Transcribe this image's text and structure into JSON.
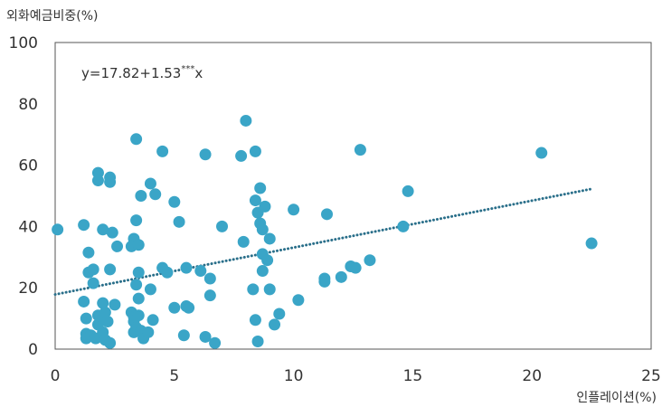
{
  "chart_data": {
    "type": "scatter",
    "ylabel": "외화예금비중(%)",
    "xlabel": "인플레이션(%)",
    "xlim": [
      0,
      25
    ],
    "ylim": [
      0,
      100
    ],
    "x_ticks": [
      "0",
      "5",
      "10",
      "15",
      "20",
      "25"
    ],
    "y_ticks": [
      "0",
      "20",
      "40",
      "60",
      "80",
      "100"
    ],
    "annotation": {
      "text": "y=17.82+1.53",
      "superscript": "***",
      "suffix": "x"
    },
    "trendline": {
      "intercept": 17.82,
      "slope": 1.53,
      "x_range": [
        0,
        22.5
      ],
      "style": "dotted"
    },
    "colors": {
      "points": "#3aa5c7",
      "trendline": "#2a6f8a",
      "frame": "#555555"
    },
    "points": [
      [
        0.1,
        39
      ],
      [
        1.2,
        40.5
      ],
      [
        1.4,
        31.5
      ],
      [
        1.4,
        25
      ],
      [
        1.6,
        26
      ],
      [
        1.6,
        21.5
      ],
      [
        1.2,
        15.5
      ],
      [
        1.3,
        10
      ],
      [
        1.3,
        5
      ],
      [
        1.3,
        3.5
      ],
      [
        1.5,
        4.5
      ],
      [
        1.7,
        3.5
      ],
      [
        1.8,
        11
      ],
      [
        1.8,
        8
      ],
      [
        2.0,
        10
      ],
      [
        2.0,
        5.5
      ],
      [
        2.1,
        3
      ],
      [
        2.3,
        2
      ],
      [
        2.1,
        12
      ],
      [
        2.2,
        9
      ],
      [
        2.0,
        15
      ],
      [
        2.5,
        14.5
      ],
      [
        1.8,
        57.5
      ],
      [
        1.8,
        55
      ],
      [
        2.3,
        56
      ],
      [
        2.3,
        54.5
      ],
      [
        2.0,
        39
      ],
      [
        2.4,
        38
      ],
      [
        2.6,
        33.5
      ],
      [
        2.3,
        26
      ],
      [
        3.4,
        68.5
      ],
      [
        3.3,
        36
      ],
      [
        3.2,
        33.5
      ],
      [
        3.5,
        34
      ],
      [
        3.4,
        42
      ],
      [
        3.6,
        50
      ],
      [
        3.5,
        25
      ],
      [
        3.4,
        21
      ],
      [
        3.5,
        16.5
      ],
      [
        3.2,
        12
      ],
      [
        3.3,
        10.5
      ],
      [
        3.5,
        11
      ],
      [
        3.3,
        9
      ],
      [
        3.4,
        7
      ],
      [
        3.3,
        5.5
      ],
      [
        3.6,
        6
      ],
      [
        3.7,
        3.5
      ],
      [
        3.9,
        5.5
      ],
      [
        4.0,
        54
      ],
      [
        4.2,
        50.5
      ],
      [
        4.0,
        19.5
      ],
      [
        4.1,
        9.5
      ],
      [
        4.5,
        64.5
      ],
      [
        4.5,
        26.5
      ],
      [
        4.7,
        25
      ],
      [
        5.0,
        48
      ],
      [
        5.2,
        41.5
      ],
      [
        5.0,
        13.5
      ],
      [
        5.4,
        4.5
      ],
      [
        5.5,
        14
      ],
      [
        5.6,
        13.5
      ],
      [
        5.5,
        26.5
      ],
      [
        6.1,
        25.5
      ],
      [
        6.3,
        4
      ],
      [
        6.5,
        23
      ],
      [
        6.5,
        17.5
      ],
      [
        6.7,
        2
      ],
      [
        6.3,
        63.5
      ],
      [
        7.0,
        40
      ],
      [
        8.0,
        74.5
      ],
      [
        7.8,
        63
      ],
      [
        7.9,
        35
      ],
      [
        8.4,
        64.5
      ],
      [
        8.6,
        52.5
      ],
      [
        8.4,
        48.5
      ],
      [
        8.5,
        44.5
      ],
      [
        8.6,
        41
      ],
      [
        8.8,
        46.5
      ],
      [
        8.7,
        39
      ],
      [
        9.0,
        36
      ],
      [
        8.7,
        31
      ],
      [
        8.9,
        29
      ],
      [
        8.7,
        25.5
      ],
      [
        8.3,
        19.5
      ],
      [
        9.0,
        19.5
      ],
      [
        8.4,
        9.5
      ],
      [
        9.2,
        8
      ],
      [
        9.4,
        11.5
      ],
      [
        8.5,
        2.5
      ],
      [
        10.0,
        45.5
      ],
      [
        10.2,
        16
      ],
      [
        11.4,
        44
      ],
      [
        11.3,
        23
      ],
      [
        11.3,
        22
      ],
      [
        12.0,
        23.5
      ],
      [
        12.4,
        27
      ],
      [
        12.6,
        26.5
      ],
      [
        13.2,
        29
      ],
      [
        12.8,
        65
      ],
      [
        14.6,
        40
      ],
      [
        14.8,
        51.5
      ],
      [
        20.4,
        64
      ],
      [
        22.5,
        34.5
      ]
    ]
  }
}
